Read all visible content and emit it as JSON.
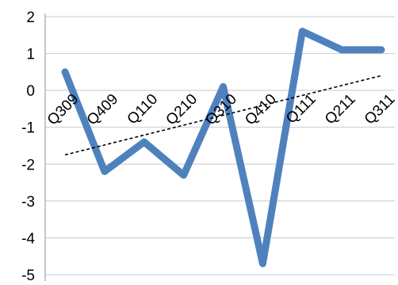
{
  "chart_data": {
    "type": "line",
    "title": "",
    "xlabel": "",
    "ylabel": "",
    "categories": [
      "Q309",
      "Q409",
      "Q110",
      "Q210",
      "Q310",
      "Q410",
      "Q111",
      "Q211",
      "Q311"
    ],
    "ylim": [
      -5,
      2
    ],
    "yticks": [
      2,
      1,
      0,
      -1,
      -2,
      -3,
      -4,
      -5
    ],
    "grid": true,
    "legend": "none",
    "series": [
      {
        "values": [
          0.5,
          -2.2,
          -1.4,
          -2.3,
          0.1,
          -4.7,
          1.6,
          1.1,
          1.1
        ],
        "x_index": [
          0,
          1,
          2,
          3,
          4,
          5,
          6,
          7,
          8
        ],
        "extra_points": [
          {
            "after_index": 1,
            "value": -2.2
          },
          {
            "after_index": 3,
            "value": -2.3
          }
        ],
        "color": "#4f81bd"
      }
    ],
    "trendline": {
      "type": "linear",
      "style": "dashed",
      "color": "#000000",
      "start_value": -1.75,
      "end_value": 0.4
    }
  }
}
